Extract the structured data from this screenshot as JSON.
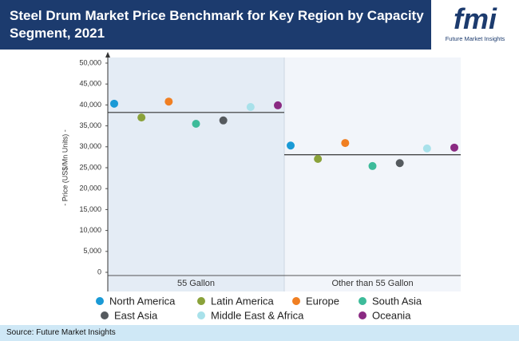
{
  "logo": {
    "mark": "fmi",
    "text": "Future Market Insights"
  },
  "source": "Source: Future Market Insights",
  "chart_data": {
    "type": "dot",
    "title": "Steel Drum Market Price Benchmark for Key Region by Capacity Segment, 2021",
    "y_label": "- Price (US$/Mn Units) -",
    "categories": [
      "55 Gallon",
      "Other than 55 Gallon"
    ],
    "benchmark_values": [
      38200,
      28100
    ],
    "ylim": [
      0,
      50000
    ],
    "yticks": [
      0,
      {
        "value": 5000,
        "label": "5,000"
      },
      {
        "value": 10000,
        "label": "10,000"
      },
      {
        "value": 15000,
        "label": "15,000"
      },
      {
        "value": 20000,
        "label": "20,000"
      },
      {
        "value": 25000,
        "label": "25,000"
      },
      {
        "value": 30000,
        "label": "30,000"
      },
      {
        "value": 35000,
        "label": "35,000"
      },
      {
        "value": 40000,
        "label": "40,000"
      },
      {
        "value": 45000,
        "label": "45,000"
      },
      {
        "value": 50000,
        "label": "50,000"
      }
    ],
    "series": [
      {
        "name": "North America",
        "color": "#1a9ad6",
        "values": [
          40300,
          30300
        ]
      },
      {
        "name": "Latin America",
        "color": "#8aa23a",
        "values": [
          37000,
          27100
        ]
      },
      {
        "name": "Europe",
        "color": "#f07f22",
        "values": [
          40800,
          30900
        ]
      },
      {
        "name": "South Asia",
        "color": "#3dbb9a",
        "values": [
          35500,
          25400
        ]
      },
      {
        "name": "East Asia",
        "color": "#555a5e",
        "values": [
          36300,
          26100
        ]
      },
      {
        "name": "Middle East & Africa",
        "color": "#a8e1ea",
        "values": [
          39500,
          29600
        ]
      },
      {
        "name": "Oceania",
        "color": "#8a2a82",
        "values": [
          39900,
          29800
        ]
      }
    ]
  }
}
